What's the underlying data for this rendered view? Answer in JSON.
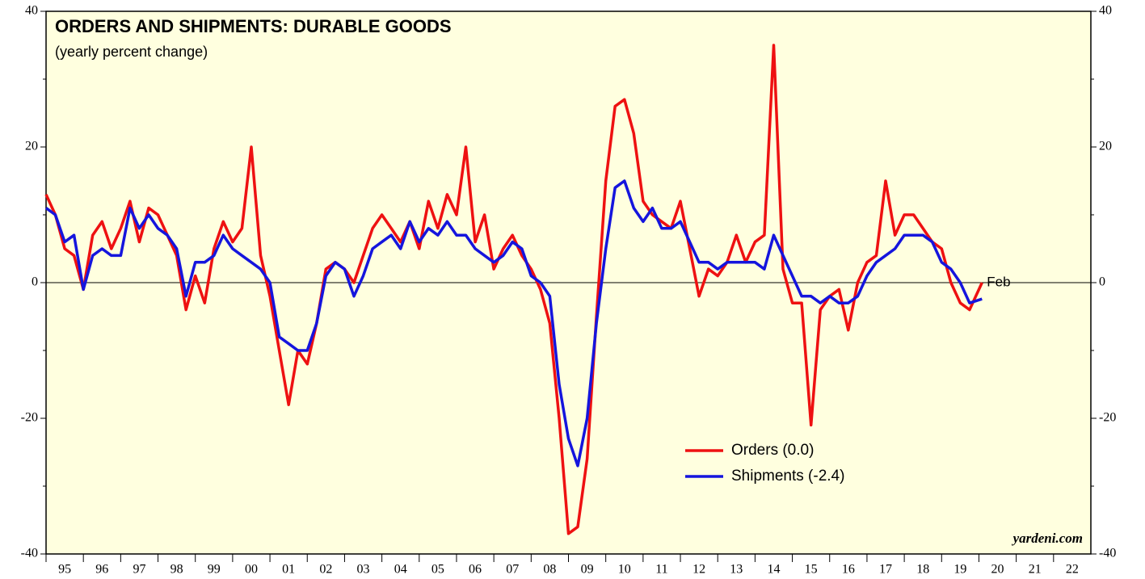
{
  "chart_data": {
    "type": "line",
    "title": "ORDERS AND SHIPMENTS: DURABLE GOODS",
    "subtitle": "(yearly percent change)",
    "source": "yardeni.com",
    "annotation": "Feb",
    "x": [
      1995,
      1995.25,
      1995.5,
      1995.75,
      1996,
      1996.25,
      1996.5,
      1996.75,
      1997,
      1997.25,
      1997.5,
      1997.75,
      1998,
      1998.25,
      1998.5,
      1998.75,
      1999,
      1999.25,
      1999.5,
      1999.75,
      2000,
      2000.25,
      2000.5,
      2000.75,
      2001,
      2001.25,
      2001.5,
      2001.75,
      2002,
      2002.25,
      2002.5,
      2002.75,
      2003,
      2003.25,
      2003.5,
      2003.75,
      2004,
      2004.25,
      2004.5,
      2004.75,
      2005,
      2005.25,
      2005.5,
      2005.75,
      2006,
      2006.25,
      2006.5,
      2006.75,
      2007,
      2007.25,
      2007.5,
      2007.75,
      2008,
      2008.25,
      2008.5,
      2008.75,
      2009,
      2009.25,
      2009.5,
      2009.75,
      2010,
      2010.25,
      2010.5,
      2010.75,
      2011,
      2011.25,
      2011.5,
      2011.75,
      2012,
      2012.25,
      2012.5,
      2012.75,
      2013,
      2013.25,
      2013.5,
      2013.75,
      2014,
      2014.25,
      2014.5,
      2014.75,
      2015,
      2015.25,
      2015.5,
      2015.75,
      2016,
      2016.25,
      2016.5,
      2016.75,
      2017,
      2017.25,
      2017.5,
      2017.75,
      2018,
      2018.25,
      2018.5,
      2018.75,
      2019,
      2019.25,
      2019.5,
      2019.75,
      2020.083
    ],
    "series": [
      {
        "name": "Orders (0.0)",
        "color": "#ee1111",
        "values": [
          13,
          10,
          5,
          4,
          -1,
          7,
          9,
          5,
          8,
          12,
          6,
          11,
          10,
          7,
          4,
          -4,
          1,
          -3,
          5,
          9,
          6,
          8,
          20,
          4,
          -2,
          -10,
          -18,
          -10,
          -12,
          -6,
          2,
          3,
          2,
          0,
          4,
          8,
          10,
          8,
          6,
          9,
          5,
          12,
          8,
          13,
          10,
          20,
          6,
          10,
          2,
          5,
          7,
          4,
          2,
          -1,
          -6,
          -20,
          -37,
          -36,
          -26,
          -5,
          15,
          26,
          27,
          22,
          12,
          10,
          9,
          8,
          12,
          5,
          -2,
          2,
          1,
          3,
          7,
          3,
          6,
          7,
          35,
          2,
          -3,
          -3,
          -21,
          -4,
          -2,
          -1,
          -7,
          0,
          3,
          4,
          15,
          7,
          10,
          10,
          8,
          6,
          5,
          0,
          -3,
          -4,
          0.0
        ]
      },
      {
        "name": "Shipments (-2.4)",
        "color": "#1515dd",
        "values": [
          11,
          10,
          6,
          7,
          -1,
          4,
          5,
          4,
          4,
          11,
          8,
          10,
          8,
          7,
          5,
          -2,
          3,
          3,
          4,
          7,
          5,
          4,
          3,
          2,
          0,
          -8,
          -9,
          -10,
          -10,
          -6,
          1,
          3,
          2,
          -2,
          1,
          5,
          6,
          7,
          5,
          9,
          6,
          8,
          7,
          9,
          7,
          7,
          5,
          4,
          3,
          4,
          6,
          5,
          1,
          0,
          -2,
          -15,
          -23,
          -27,
          -20,
          -6,
          5,
          14,
          15,
          11,
          9,
          11,
          8,
          8,
          9,
          6,
          3,
          3,
          2,
          3,
          3,
          3,
          3,
          2,
          7,
          4,
          1,
          -2,
          -2,
          -3,
          -2,
          -3,
          -3,
          -2,
          1,
          3,
          4,
          5,
          7,
          7,
          7,
          6,
          3,
          2,
          0,
          -3,
          -2.4
        ]
      }
    ],
    "xlim": [
      1995,
      2023
    ],
    "xticks": [
      {
        "value": 1995.5,
        "label": "95"
      },
      {
        "value": 1996.5,
        "label": "96"
      },
      {
        "value": 1997.5,
        "label": "97"
      },
      {
        "value": 1998.5,
        "label": "98"
      },
      {
        "value": 1999.5,
        "label": "99"
      },
      {
        "value": 2000.5,
        "label": "00"
      },
      {
        "value": 2001.5,
        "label": "01"
      },
      {
        "value": 2002.5,
        "label": "02"
      },
      {
        "value": 2003.5,
        "label": "03"
      },
      {
        "value": 2004.5,
        "label": "04"
      },
      {
        "value": 2005.5,
        "label": "05"
      },
      {
        "value": 2006.5,
        "label": "06"
      },
      {
        "value": 2007.5,
        "label": "07"
      },
      {
        "value": 2008.5,
        "label": "08"
      },
      {
        "value": 2009.5,
        "label": "09"
      },
      {
        "value": 2010.5,
        "label": "10"
      },
      {
        "value": 2011.5,
        "label": "11"
      },
      {
        "value": 2012.5,
        "label": "12"
      },
      {
        "value": 2013.5,
        "label": "13"
      },
      {
        "value": 2014.5,
        "label": "14"
      },
      {
        "value": 2015.5,
        "label": "15"
      },
      {
        "value": 2016.5,
        "label": "16"
      },
      {
        "value": 2017.5,
        "label": "17"
      },
      {
        "value": 2018.5,
        "label": "18"
      },
      {
        "value": 2019.5,
        "label": "19"
      },
      {
        "value": 2020.5,
        "label": "20"
      },
      {
        "value": 2021.5,
        "label": "21"
      },
      {
        "value": 2022.5,
        "label": "22"
      }
    ],
    "ylim": [
      -40,
      40
    ],
    "yticks": [
      -40,
      -20,
      0,
      20,
      40
    ],
    "y2lim": [
      -40,
      40
    ],
    "y2ticks": [
      -40,
      -20,
      0,
      20,
      40
    ],
    "zero_line": true
  }
}
